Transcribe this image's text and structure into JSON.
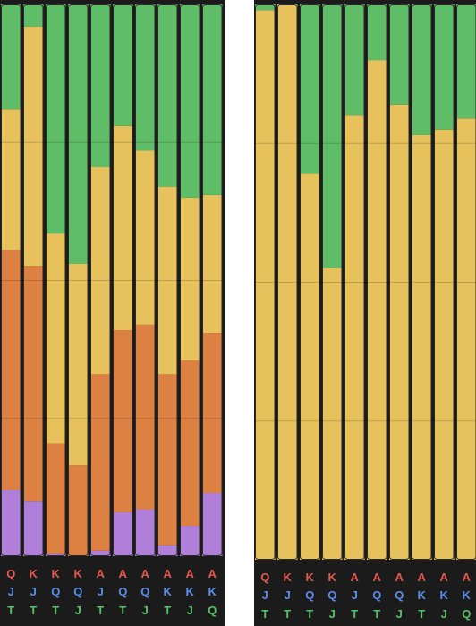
{
  "colors": {
    "green": "#5ebd66",
    "yellow": "#e7c25c",
    "orange": "#dd8142",
    "purple": "#b07fd9",
    "red": "#e25a4e",
    "blue": "#5b8eea",
    "label_green": "#58c168",
    "background": "#1b1b1b"
  },
  "chart_data": [
    {
      "type": "bar",
      "stacked": true,
      "orientation": "vertical",
      "ylim": [
        0,
        100
      ],
      "grid": true,
      "categories": [
        {
          "card1": "Q",
          "card2": "J",
          "card3": "T"
        },
        {
          "card1": "K",
          "card2": "J",
          "card3": "T"
        },
        {
          "card1": "K",
          "card2": "Q",
          "card3": "T"
        },
        {
          "card1": "K",
          "card2": "Q",
          "card3": "J"
        },
        {
          "card1": "A",
          "card2": "J",
          "card3": "T"
        },
        {
          "card1": "A",
          "card2": "Q",
          "card3": "T"
        },
        {
          "card1": "A",
          "card2": "Q",
          "card3": "J"
        },
        {
          "card1": "A",
          "card2": "K",
          "card3": "T"
        },
        {
          "card1": "A",
          "card2": "K",
          "card3": "J"
        },
        {
          "card1": "A",
          "card2": "K",
          "card3": "Q"
        }
      ],
      "series": [
        {
          "color_key": "purple",
          "values": [
            12,
            10,
            0.5,
            0,
            1,
            8,
            8.5,
            2,
            5.5,
            11.5
          ]
        },
        {
          "color_key": "orange",
          "values": [
            43.5,
            42.5,
            20,
            16.5,
            32,
            33,
            33.5,
            31,
            30,
            29
          ]
        },
        {
          "color_key": "yellow",
          "values": [
            25.5,
            43.5,
            38,
            36.5,
            37.5,
            37,
            31.5,
            34,
            29.5,
            25
          ]
        },
        {
          "color_key": "green",
          "values": [
            19,
            4,
            41.5,
            47,
            29.5,
            22,
            26.5,
            33,
            35,
            34.5
          ]
        }
      ]
    },
    {
      "type": "bar",
      "stacked": true,
      "orientation": "vertical",
      "ylim": [
        0,
        100
      ],
      "grid": true,
      "categories": [
        {
          "card1": "Q",
          "card2": "J",
          "card3": "T"
        },
        {
          "card1": "K",
          "card2": "J",
          "card3": "T"
        },
        {
          "card1": "K",
          "card2": "Q",
          "card3": "T"
        },
        {
          "card1": "K",
          "card2": "Q",
          "card3": "J"
        },
        {
          "card1": "A",
          "card2": "J",
          "card3": "T"
        },
        {
          "card1": "A",
          "card2": "Q",
          "card3": "T"
        },
        {
          "card1": "A",
          "card2": "Q",
          "card3": "J"
        },
        {
          "card1": "A",
          "card2": "K",
          "card3": "T"
        },
        {
          "card1": "A",
          "card2": "K",
          "card3": "J"
        },
        {
          "card1": "A",
          "card2": "K",
          "card3": "Q"
        }
      ],
      "series": [
        {
          "color_key": "yellow",
          "values": [
            99,
            100,
            69.5,
            52.5,
            80,
            90,
            82,
            76.5,
            77.5,
            79.5
          ]
        },
        {
          "color_key": "green",
          "values": [
            1,
            0,
            30.5,
            47.5,
            20,
            10,
            18,
            23.5,
            22.5,
            20.5
          ]
        }
      ]
    }
  ]
}
